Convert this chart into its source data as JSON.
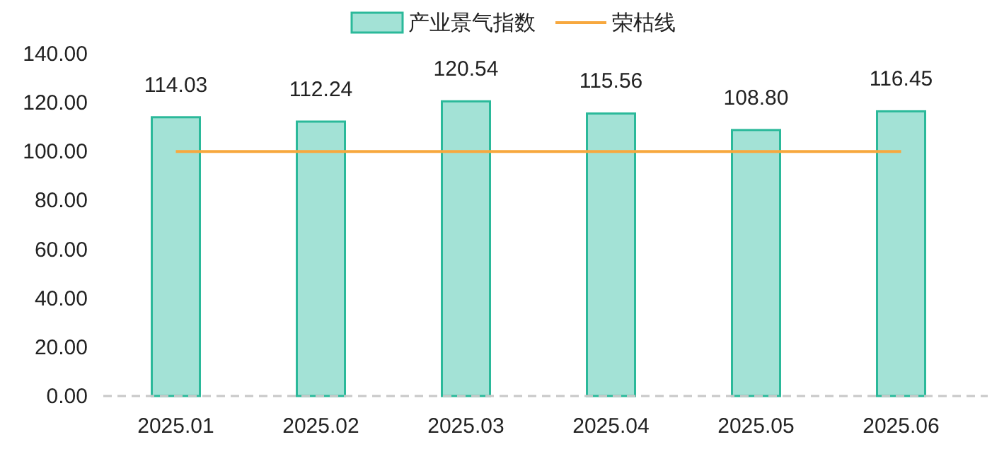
{
  "chart_data": {
    "type": "bar",
    "categories": [
      "2025.01",
      "2025.02",
      "2025.03",
      "2025.04",
      "2025.05",
      "2025.06"
    ],
    "series": [
      {
        "name": "产业景气指数",
        "color": "#a3e2d6",
        "values": [
          114.03,
          112.24,
          120.54,
          115.56,
          108.8,
          116.45
        ],
        "value_labels": [
          "114.03",
          "112.24",
          "120.54",
          "115.56",
          "108.80",
          "116.45"
        ]
      },
      {
        "name": "荣枯线",
        "type": "line",
        "color": "#f7a83e",
        "values": [
          100,
          100,
          100,
          100,
          100,
          100
        ]
      }
    ],
    "ylim": [
      0,
      140
    ],
    "yticks": [
      {
        "value": 0,
        "label": "0.00"
      },
      {
        "value": 20,
        "label": "20.00"
      },
      {
        "value": 40,
        "label": "40.00"
      },
      {
        "value": 60,
        "label": "60.00"
      },
      {
        "value": 80,
        "label": "80.00"
      },
      {
        "value": 100,
        "label": "100.00"
      },
      {
        "value": 120,
        "label": "120.00"
      },
      {
        "value": 140,
        "label": "140.00"
      }
    ],
    "grid": false,
    "legend": "top",
    "marker": "none"
  }
}
